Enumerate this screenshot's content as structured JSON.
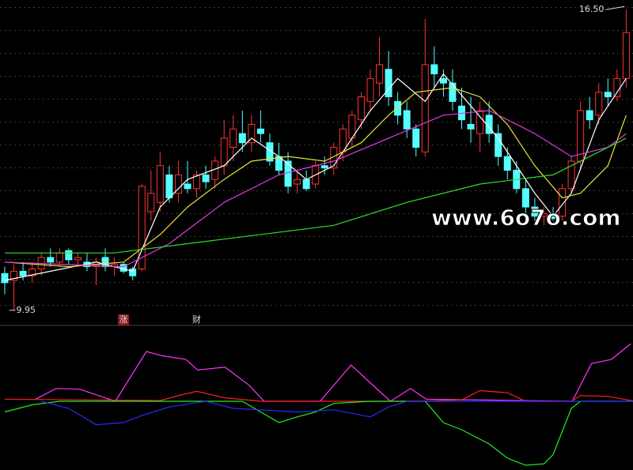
{
  "chart_data": {
    "type": "candlestick",
    "ylim": [
      9.74,
      16.71
    ],
    "up_color": "#ff3232",
    "down_color": "#54ffff",
    "ohlc": [
      [
        10.75,
        10.9,
        10.3,
        10.55
      ],
      [
        10.6,
        10.95,
        9.95,
        10.8
      ],
      [
        10.8,
        11.0,
        10.6,
        10.7
      ],
      [
        10.7,
        11.0,
        10.55,
        10.85
      ],
      [
        10.85,
        11.2,
        10.7,
        11.1
      ],
      [
        11.1,
        11.3,
        10.9,
        11.0
      ],
      [
        11.0,
        11.3,
        10.9,
        11.2
      ],
      [
        11.25,
        11.3,
        10.95,
        11.05
      ],
      [
        11.05,
        11.2,
        10.9,
        11.1
      ],
      [
        11.0,
        11.2,
        10.8,
        10.9
      ],
      [
        10.9,
        11.1,
        10.5,
        11.0
      ],
      [
        11.1,
        11.3,
        10.8,
        10.9
      ],
      [
        10.9,
        11.1,
        10.7,
        10.95
      ],
      [
        10.95,
        11.0,
        10.75,
        10.8
      ],
      [
        10.85,
        10.9,
        10.6,
        10.7
      ],
      [
        10.85,
        12.7,
        10.8,
        12.65
      ],
      [
        12.1,
        13.0,
        11.9,
        12.5
      ],
      [
        12.3,
        13.4,
        12.1,
        13.1
      ],
      [
        12.9,
        13.1,
        12.3,
        12.4
      ],
      [
        12.5,
        13.2,
        12.3,
        12.9
      ],
      [
        12.7,
        13.2,
        12.5,
        12.6
      ],
      [
        12.6,
        13.0,
        12.4,
        12.9
      ],
      [
        12.9,
        13.1,
        12.6,
        12.75
      ],
      [
        12.8,
        13.3,
        12.6,
        13.2
      ],
      [
        13.1,
        14.1,
        12.9,
        13.7
      ],
      [
        13.5,
        14.2,
        13.2,
        13.9
      ],
      [
        13.8,
        14.3,
        13.4,
        13.6
      ],
      [
        13.6,
        14.2,
        13.4,
        14.0
      ],
      [
        13.9,
        14.3,
        13.6,
        13.8
      ],
      [
        13.6,
        13.8,
        13.1,
        13.2
      ],
      [
        13.3,
        13.6,
        12.9,
        13.0
      ],
      [
        13.2,
        13.4,
        12.5,
        12.65
      ],
      [
        12.7,
        13.0,
        12.5,
        12.8
      ],
      [
        12.8,
        13.0,
        12.55,
        12.6
      ],
      [
        12.7,
        13.2,
        12.6,
        13.1
      ],
      [
        13.1,
        13.3,
        12.9,
        13.05
      ],
      [
        13.05,
        13.6,
        12.9,
        13.5
      ],
      [
        13.4,
        14.0,
        13.2,
        13.9
      ],
      [
        13.7,
        14.3,
        13.5,
        14.2
      ],
      [
        14.1,
        14.7,
        13.9,
        14.6
      ],
      [
        14.5,
        15.2,
        14.3,
        15.0
      ],
      [
        14.9,
        15.9,
        14.6,
        15.3
      ],
      [
        15.2,
        15.6,
        14.4,
        14.6
      ],
      [
        14.5,
        14.7,
        14.0,
        14.2
      ],
      [
        14.3,
        14.5,
        13.7,
        13.9
      ],
      [
        13.9,
        14.0,
        13.3,
        13.5
      ],
      [
        13.4,
        16.3,
        13.3,
        15.3
      ],
      [
        15.3,
        15.7,
        14.8,
        15.1
      ],
      [
        15.0,
        15.2,
        14.6,
        14.9
      ],
      [
        14.9,
        15.2,
        14.3,
        14.5
      ],
      [
        14.4,
        14.8,
        13.9,
        14.1
      ],
      [
        14.0,
        14.6,
        13.6,
        13.9
      ],
      [
        13.8,
        14.5,
        13.4,
        14.3
      ],
      [
        14.2,
        14.5,
        13.6,
        13.8
      ],
      [
        13.8,
        14.0,
        13.1,
        13.3
      ],
      [
        13.3,
        13.5,
        12.8,
        13.0
      ],
      [
        13.0,
        13.2,
        12.5,
        12.6
      ],
      [
        12.6,
        12.8,
        12.0,
        12.2
      ],
      [
        12.2,
        12.4,
        11.9,
        12.0
      ],
      [
        12.0,
        12.2,
        11.8,
        12.05
      ],
      [
        12.05,
        12.2,
        11.9,
        11.95
      ],
      [
        12.0,
        12.7,
        11.9,
        12.6
      ],
      [
        12.6,
        13.3,
        12.5,
        13.2
      ],
      [
        13.2,
        14.5,
        13.0,
        14.3
      ],
      [
        14.3,
        14.6,
        13.9,
        14.1
      ],
      [
        14.2,
        14.9,
        14.0,
        14.7
      ],
      [
        14.7,
        15.0,
        14.4,
        14.6
      ],
      [
        14.6,
        15.2,
        14.5,
        15.0
      ],
      [
        15.0,
        16.5,
        14.8,
        16.0
      ]
    ],
    "overlays": [
      {
        "color": "#ffffff",
        "x": [
          0,
          5,
          10,
          14,
          17,
          20,
          24,
          27,
          30,
          33,
          36,
          40,
          43,
          46,
          48,
          51,
          54,
          58,
          60,
          62,
          65,
          68
        ],
        "values": [
          10.6,
          10.8,
          11.0,
          10.8,
          12.2,
          12.8,
          13.1,
          13.7,
          13.3,
          12.8,
          13.1,
          14.3,
          15.0,
          14.5,
          15.1,
          14.4,
          13.7,
          12.5,
          12.0,
          12.5,
          14.1,
          15.0
        ]
      },
      {
        "color": "#e8e23a",
        "x": [
          0,
          7,
          13,
          17,
          20,
          24,
          27,
          31,
          35,
          39,
          42,
          45,
          49,
          52,
          55,
          58,
          61,
          63,
          66,
          68
        ],
        "values": [
          11.0,
          10.9,
          11.0,
          11.6,
          12.2,
          12.8,
          13.2,
          13.3,
          13.2,
          13.6,
          14.2,
          14.7,
          14.8,
          14.6,
          14.0,
          13.1,
          12.4,
          12.5,
          13.1,
          14.2
        ]
      },
      {
        "color": "#e03ce0",
        "x": [
          0,
          13,
          18,
          24,
          30,
          36,
          42,
          48,
          53,
          58,
          62,
          66,
          68
        ],
        "values": [
          11.0,
          10.9,
          11.4,
          12.3,
          12.9,
          13.2,
          13.7,
          14.2,
          14.3,
          13.8,
          13.3,
          13.5,
          13.8
        ]
      },
      {
        "color": "#2ee02e",
        "x": [
          0,
          12,
          24,
          36,
          44,
          52,
          60,
          68
        ],
        "values": [
          11.2,
          11.2,
          11.5,
          11.8,
          12.3,
          12.7,
          12.9,
          13.7
        ]
      }
    ],
    "annotations": [
      {
        "label": "16.50",
        "value": 16.5,
        "index": 68
      },
      {
        "label": "9.95",
        "value": 9.95,
        "index": 1
      }
    ],
    "markers": [
      {
        "label": "涨",
        "index": 13
      },
      {
        "label": "财",
        "index": 21
      }
    ],
    "watermark": "www.6o7o.com",
    "indicator": {
      "ylim": [
        -100,
        100
      ],
      "series": [
        {
          "color": "#ff33ff",
          "x": [
            3.4,
            5.6,
            8.2,
            12.1,
            15.5,
            17.2,
            19.8,
            21.1,
            24.1,
            26.7,
            28.4,
            34.5,
            37.9,
            40.5,
            42.2,
            44.4,
            46.1,
            62.1,
            64.2,
            66.4,
            68.5
          ],
          "values": [
            3,
            18,
            17,
            0,
            70,
            64,
            59,
            44,
            48,
            23,
            0,
            0,
            51,
            20,
            0,
            18,
            3,
            0,
            53,
            59,
            81
          ]
        },
        {
          "color": "#ff2020",
          "x": [
            0,
            17,
            19,
            21,
            24,
            28,
            45,
            50,
            52,
            55,
            57,
            62,
            63,
            66,
            69
          ],
          "values": [
            3,
            1,
            8,
            14,
            5,
            0,
            0,
            2,
            15,
            12,
            0,
            0,
            8,
            7,
            0
          ]
        },
        {
          "color": "#22ee22",
          "x": [
            0,
            3,
            6,
            26,
            28,
            30,
            32,
            34,
            36,
            40,
            46,
            48,
            50,
            53,
            55,
            57,
            59,
            60,
            62,
            63,
            69
          ],
          "values": [
            -15,
            -5,
            0,
            0,
            -15,
            -30,
            -22,
            -15,
            -3,
            0,
            0,
            -30,
            -40,
            -60,
            -80,
            -90,
            -88,
            -75,
            -10,
            0,
            0
          ]
        },
        {
          "color": "#2a2aff",
          "x": [
            4,
            7,
            10,
            13,
            15,
            18,
            22,
            25,
            28,
            32,
            36,
            40,
            42,
            44,
            69
          ],
          "values": [
            0,
            -10,
            -33,
            -30,
            -20,
            -8,
            0,
            -10,
            -12,
            -15,
            -12,
            -22,
            -8,
            0,
            0
          ]
        }
      ]
    }
  }
}
